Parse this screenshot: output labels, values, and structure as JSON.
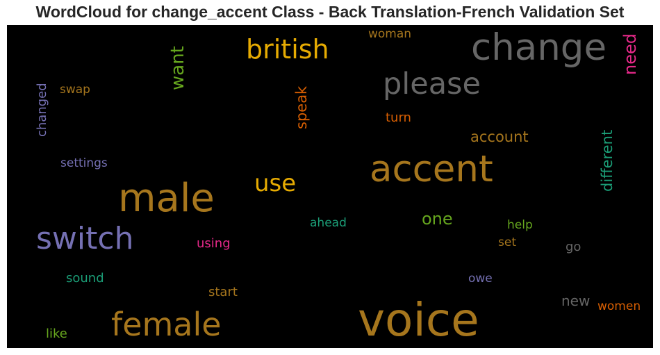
{
  "title": "WordCloud for change_accent Class - Back Translation-French Validation Set",
  "words": [
    {
      "text": "voice",
      "color": "#a6761d",
      "orientation": "horizontal"
    },
    {
      "text": "change",
      "color": "#666666",
      "orientation": "horizontal"
    },
    {
      "text": "accent",
      "color": "#a6761d",
      "orientation": "horizontal"
    },
    {
      "text": "male",
      "color": "#a6761d",
      "orientation": "horizontal"
    },
    {
      "text": "female",
      "color": "#a6761d",
      "orientation": "horizontal"
    },
    {
      "text": "switch",
      "color": "#7570b3",
      "orientation": "horizontal"
    },
    {
      "text": "please",
      "color": "#666666",
      "orientation": "horizontal"
    },
    {
      "text": "british",
      "color": "#e6ab02",
      "orientation": "horizontal"
    },
    {
      "text": "use",
      "color": "#e6ab02",
      "orientation": "horizontal"
    },
    {
      "text": "want",
      "color": "#66a61e",
      "orientation": "vertical"
    },
    {
      "text": "need",
      "color": "#e7298a",
      "orientation": "vertical"
    },
    {
      "text": "different",
      "color": "#1b9e77",
      "orientation": "vertical"
    },
    {
      "text": "speak",
      "color": "#d95f02",
      "orientation": "vertical"
    },
    {
      "text": "changed",
      "color": "#7570b3",
      "orientation": "vertical"
    },
    {
      "text": "account",
      "color": "#a6761d",
      "orientation": "horizontal"
    },
    {
      "text": "one",
      "color": "#66a61e",
      "orientation": "horizontal"
    },
    {
      "text": "new",
      "color": "#666666",
      "orientation": "horizontal"
    },
    {
      "text": "woman",
      "color": "#a6761d",
      "orientation": "horizontal"
    },
    {
      "text": "swap",
      "color": "#a6761d",
      "orientation": "horizontal"
    },
    {
      "text": "turn",
      "color": "#d95f02",
      "orientation": "horizontal"
    },
    {
      "text": "settings",
      "color": "#7570b3",
      "orientation": "horizontal"
    },
    {
      "text": "ahead",
      "color": "#1b9e77",
      "orientation": "horizontal"
    },
    {
      "text": "help",
      "color": "#66a61e",
      "orientation": "horizontal"
    },
    {
      "text": "using",
      "color": "#e7298a",
      "orientation": "horizontal"
    },
    {
      "text": "set",
      "color": "#a6761d",
      "orientation": "horizontal"
    },
    {
      "text": "go",
      "color": "#666666",
      "orientation": "horizontal"
    },
    {
      "text": "sound",
      "color": "#1b9e77",
      "orientation": "horizontal"
    },
    {
      "text": "owe",
      "color": "#7570b3",
      "orientation": "horizontal"
    },
    {
      "text": "start",
      "color": "#a6761d",
      "orientation": "horizontal"
    },
    {
      "text": "women",
      "color": "#d95f02",
      "orientation": "horizontal"
    },
    {
      "text": "like",
      "color": "#66a61e",
      "orientation": "horizontal"
    }
  ]
}
